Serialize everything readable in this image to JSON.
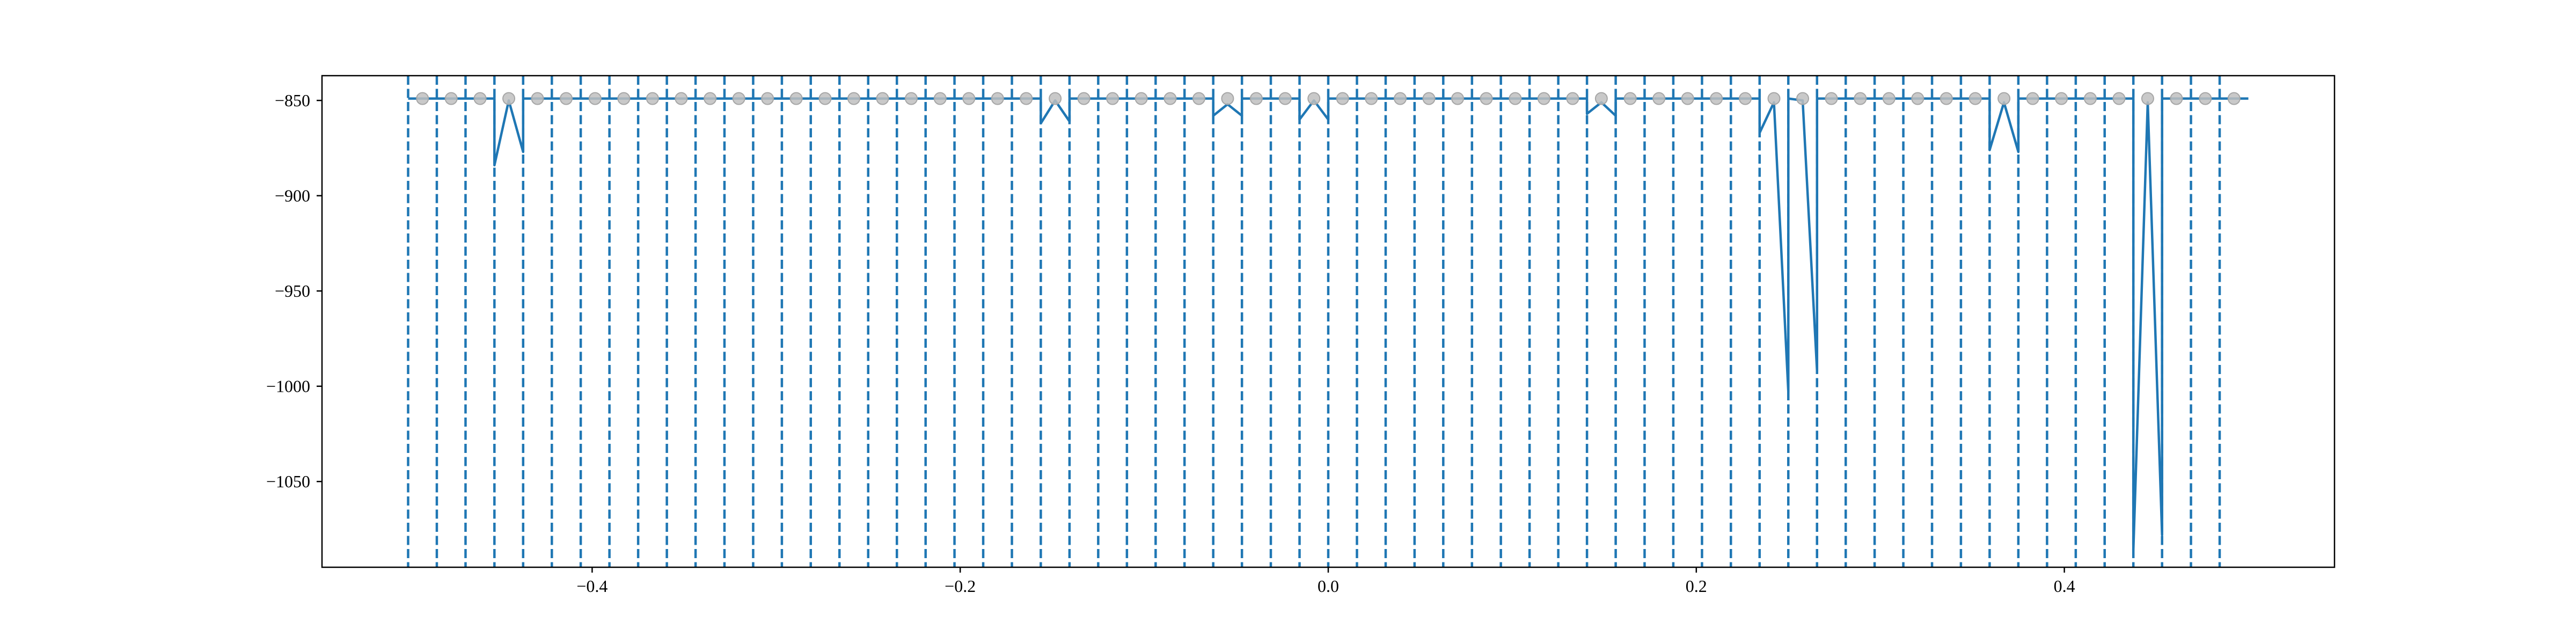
{
  "chart_data": {
    "type": "line",
    "title": "",
    "xlabel": "",
    "ylabel": "",
    "xlim": [
      -0.5468,
      0.5468
    ],
    "ylim": [
      -1095,
      -837
    ],
    "grid": false,
    "legend": "none",
    "colors": {
      "line": "#1f77b4",
      "vlines": "#1f77b4",
      "markers": "#bfbfbf",
      "marker_edge": "#a6a6a6",
      "axes": "#000000"
    },
    "x_ticks": [
      {
        "value": -0.4,
        "label": "−0.4"
      },
      {
        "value": -0.2,
        "label": "−0.2"
      },
      {
        "value": 0.0,
        "label": "0.0"
      },
      {
        "value": 0.2,
        "label": "0.2"
      },
      {
        "value": 0.4,
        "label": "0.4"
      }
    ],
    "y_ticks": [
      {
        "value": -850,
        "label": "−850"
      },
      {
        "value": -900,
        "label": "−900"
      },
      {
        "value": -950,
        "label": "−950"
      },
      {
        "value": -1000,
        "label": "−1000"
      },
      {
        "value": -1050,
        "label": "−1050"
      }
    ],
    "vlines_x": [
      -0.5,
      -0.4844,
      -0.4688,
      -0.4531,
      -0.4375,
      -0.4219,
      -0.4062,
      -0.3906,
      -0.375,
      -0.3594,
      -0.3438,
      -0.3281,
      -0.3125,
      -0.2969,
      -0.2812,
      -0.2656,
      -0.25,
      -0.2344,
      -0.2188,
      -0.2031,
      -0.1875,
      -0.1719,
      -0.1562,
      -0.1406,
      -0.125,
      -0.1094,
      -0.0938,
      -0.0781,
      -0.0625,
      -0.0469,
      -0.0312,
      -0.0156,
      0.0,
      0.0156,
      0.0312,
      0.0469,
      0.0625,
      0.0781,
      0.0938,
      0.1094,
      0.125,
      0.1406,
      0.1562,
      0.1719,
      0.1875,
      0.2031,
      0.2188,
      0.2344,
      0.25,
      0.2656,
      0.2812,
      0.2969,
      0.3125,
      0.3281,
      0.3438,
      0.3594,
      0.375,
      0.3906,
      0.4062,
      0.4219,
      0.4375,
      0.4531,
      0.4688,
      0.4844
    ],
    "markers_x": [
      -0.4922,
      -0.4766,
      -0.4609,
      -0.4453,
      -0.4297,
      -0.4141,
      -0.3984,
      -0.3828,
      -0.3672,
      -0.3516,
      -0.3359,
      -0.3203,
      -0.3047,
      -0.2891,
      -0.2734,
      -0.2578,
      -0.2422,
      -0.2266,
      -0.2109,
      -0.1953,
      -0.1797,
      -0.1641,
      -0.1484,
      -0.1328,
      -0.1172,
      -0.1016,
      -0.0859,
      -0.0703,
      -0.0547,
      -0.0391,
      -0.0234,
      -0.0078,
      0.0078,
      0.0234,
      0.0391,
      0.0547,
      0.0703,
      0.0859,
      0.1016,
      0.1172,
      0.1328,
      0.1484,
      0.1641,
      0.1797,
      0.1953,
      0.2109,
      0.2266,
      0.2422,
      0.2578,
      0.2734,
      0.2891,
      0.3047,
      0.3203,
      0.3359,
      0.3516,
      0.3672,
      0.3828,
      0.3984,
      0.4141,
      0.4297,
      0.4453,
      0.4609,
      0.4766,
      0.4922
    ],
    "markers_y": -849,
    "series": [
      {
        "x": [
          -0.5,
          -0.4531,
          -0.4531,
          -0.4453,
          -0.4375,
          -0.4375,
          -0.1562,
          -0.1562,
          -0.1484,
          -0.1406,
          -0.1406,
          -0.0625,
          -0.0625,
          -0.0547,
          -0.0469,
          -0.0469,
          -0.0156,
          -0.0156,
          -0.0078,
          0.0,
          0.0,
          0.1406,
          0.1406,
          0.1484,
          0.1562,
          0.1562,
          0.2344,
          0.2344,
          0.2422,
          0.25,
          0.25,
          0.2578,
          0.2656,
          0.2656,
          0.3594,
          0.3594,
          0.3672,
          0.375,
          0.375,
          0.4375,
          0.4375,
          0.4453,
          0.4531,
          0.4531,
          0.5
        ],
        "y": [
          -849,
          -849,
          -884,
          -850,
          -877,
          -849,
          -849,
          -862,
          -850,
          -861,
          -849,
          -849,
          -858,
          -852,
          -858,
          -849,
          -849,
          -860,
          -850,
          -860,
          -849,
          -849,
          -857,
          -851,
          -858,
          -849,
          -849,
          -867,
          -851,
          -1003,
          -849,
          -850,
          -992,
          -849,
          -849,
          -876,
          -851,
          -877,
          -849,
          -849,
          -1086,
          -851,
          -1078,
          -849,
          -849
        ]
      }
    ]
  }
}
